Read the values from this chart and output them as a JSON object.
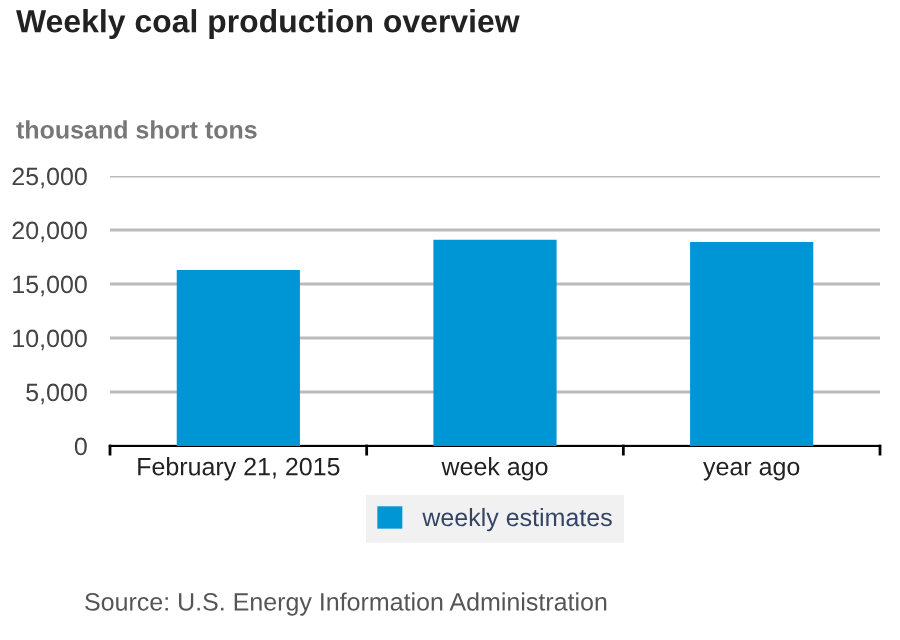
{
  "chart_data": {
    "type": "bar",
    "title": "Weekly coal production overview",
    "ylabel": "thousand short tons",
    "categories": [
      "February 21, 2015",
      "week ago",
      "year ago"
    ],
    "series": [
      {
        "name": "weekly estimates",
        "color": "#0096d6",
        "values": [
          16300,
          19100,
          18900
        ]
      }
    ],
    "ylim": [
      0,
      25000
    ],
    "yticks": [
      {
        "value": 0,
        "label": "0"
      },
      {
        "value": 5000,
        "label": "5,000"
      },
      {
        "value": 10000,
        "label": "10,000"
      },
      {
        "value": 15000,
        "label": "15,000"
      },
      {
        "value": 20000,
        "label": "20,000"
      },
      {
        "value": 25000,
        "label": "25,000"
      }
    ],
    "grid": "y",
    "legend": "bottom",
    "annotations": [
      "Source: U.S. Energy Information Administration"
    ]
  }
}
